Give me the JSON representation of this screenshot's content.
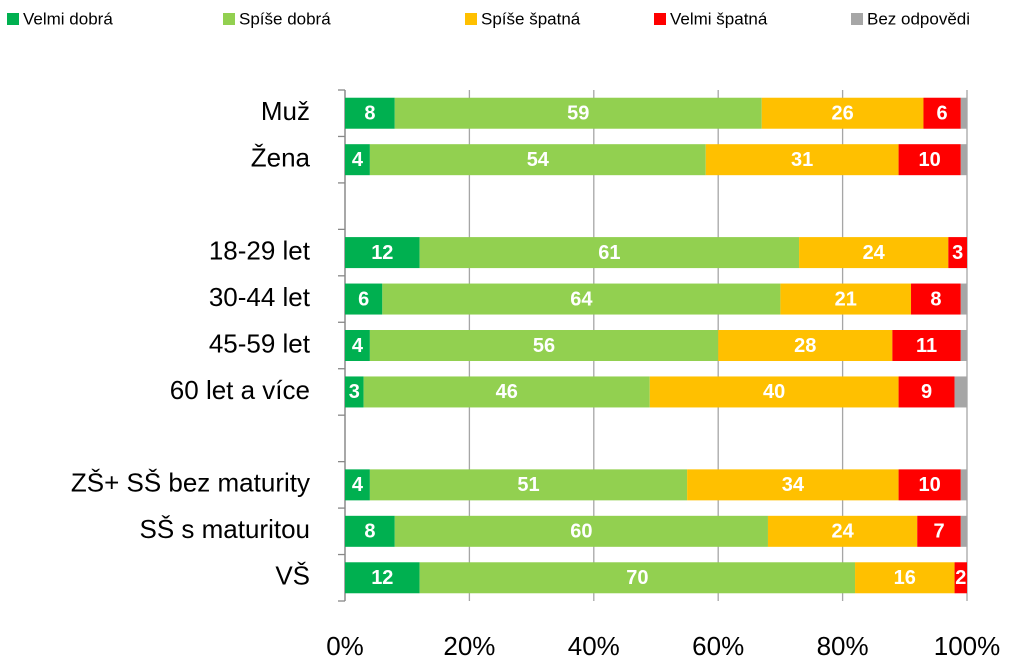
{
  "chart_data": {
    "type": "stacked-bar-horizontal",
    "categories": [
      "Muž",
      "Žena",
      null,
      "18-29 let",
      "30-44 let",
      "45-59 let",
      "60 let a více",
      null,
      "ZŠ+ SŠ bez maturity",
      "SŠ s maturitou",
      "VŠ"
    ],
    "series": [
      {
        "name": "Velmi dobrá",
        "color": "#00b050",
        "values": [
          8,
          4,
          null,
          12,
          6,
          4,
          3,
          null,
          4,
          8,
          12
        ]
      },
      {
        "name": "Spíše dobrá",
        "color": "#92d050",
        "values": [
          59,
          54,
          null,
          61,
          64,
          56,
          46,
          null,
          51,
          60,
          70
        ]
      },
      {
        "name": "Spíše špatná",
        "color": "#ffc000",
        "values": [
          26,
          31,
          null,
          24,
          21,
          28,
          40,
          null,
          34,
          24,
          16
        ]
      },
      {
        "name": "Velmi špatná",
        "color": "#ff0000",
        "values": [
          6,
          10,
          null,
          3,
          8,
          11,
          9,
          null,
          10,
          7,
          2
        ]
      },
      {
        "name": "Bez odpovědi",
        "color": "#a6a6a6",
        "values": [
          1,
          1,
          null,
          0,
          1,
          1,
          2,
          null,
          1,
          1,
          0
        ],
        "data_labels": false
      }
    ],
    "xlim": [
      0,
      100
    ],
    "xticks": [
      {
        "value": 0,
        "label": "0%"
      },
      {
        "value": 20,
        "label": "20%"
      },
      {
        "value": 40,
        "label": "40%"
      },
      {
        "value": 60,
        "label": "60%"
      },
      {
        "value": 80,
        "label": "80%"
      },
      {
        "value": 100,
        "label": "100%"
      }
    ],
    "grid": true,
    "legend": "top"
  }
}
